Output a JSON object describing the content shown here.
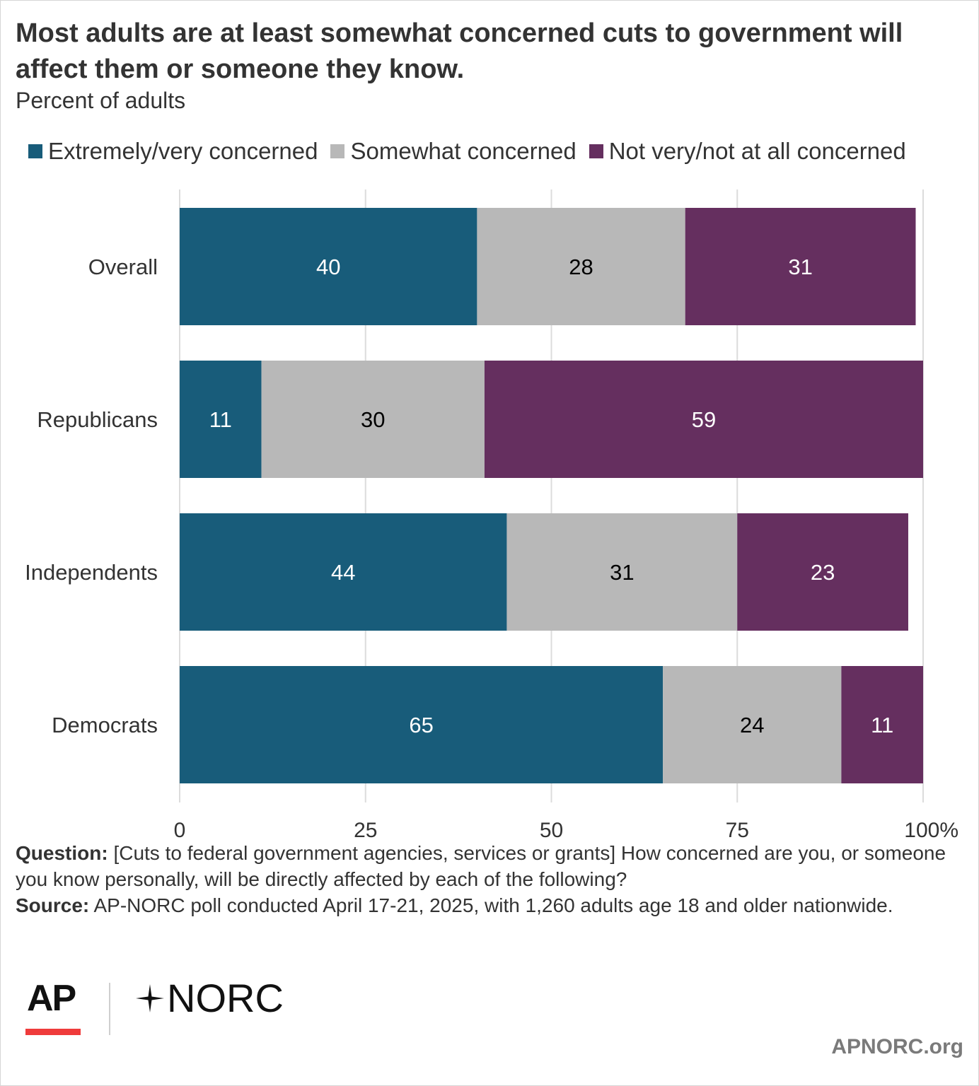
{
  "header": {
    "title": "Most adults are at least somewhat concerned cuts to government will affect them or someone they know.",
    "subtitle": "Percent of adults"
  },
  "chart_data": {
    "type": "bar",
    "orientation": "horizontal",
    "stacked": true,
    "categories": [
      "Overall",
      "Republicans",
      "Independents",
      "Democrats"
    ],
    "series": [
      {
        "name": "Extremely/very concerned",
        "color": "#185c7a",
        "label_color": "#ffffff",
        "values": [
          40,
          11,
          44,
          65
        ]
      },
      {
        "name": "Somewhat concerned",
        "color": "#b8b8b8",
        "label_color": "#000000",
        "values": [
          28,
          30,
          31,
          24
        ]
      },
      {
        "name": "Not very/not at all concerned",
        "color": "#652f5f",
        "label_color": "#ffffff",
        "values": [
          31,
          59,
          23,
          11
        ]
      }
    ],
    "xlim": [
      0,
      100
    ],
    "xticks": [
      "0",
      "25",
      "50",
      "75",
      "100%"
    ],
    "xtick_values": [
      0,
      25,
      50,
      75,
      100
    ],
    "grid": true,
    "legend_position": "top-left"
  },
  "notes": {
    "question_label": "Question:",
    "question_text": "[Cuts to federal government agencies, services or grants] How concerned are you, or someone you know personally, will be directly affected by each of the following?",
    "source_label": "Source:",
    "source_text": "AP-NORC poll conducted April 17-21, 2025, with 1,260 adults age 18 and older nationwide."
  },
  "footer": {
    "logo_ap": "AP",
    "logo_norc": "NORC",
    "site": "APNORC.org"
  }
}
